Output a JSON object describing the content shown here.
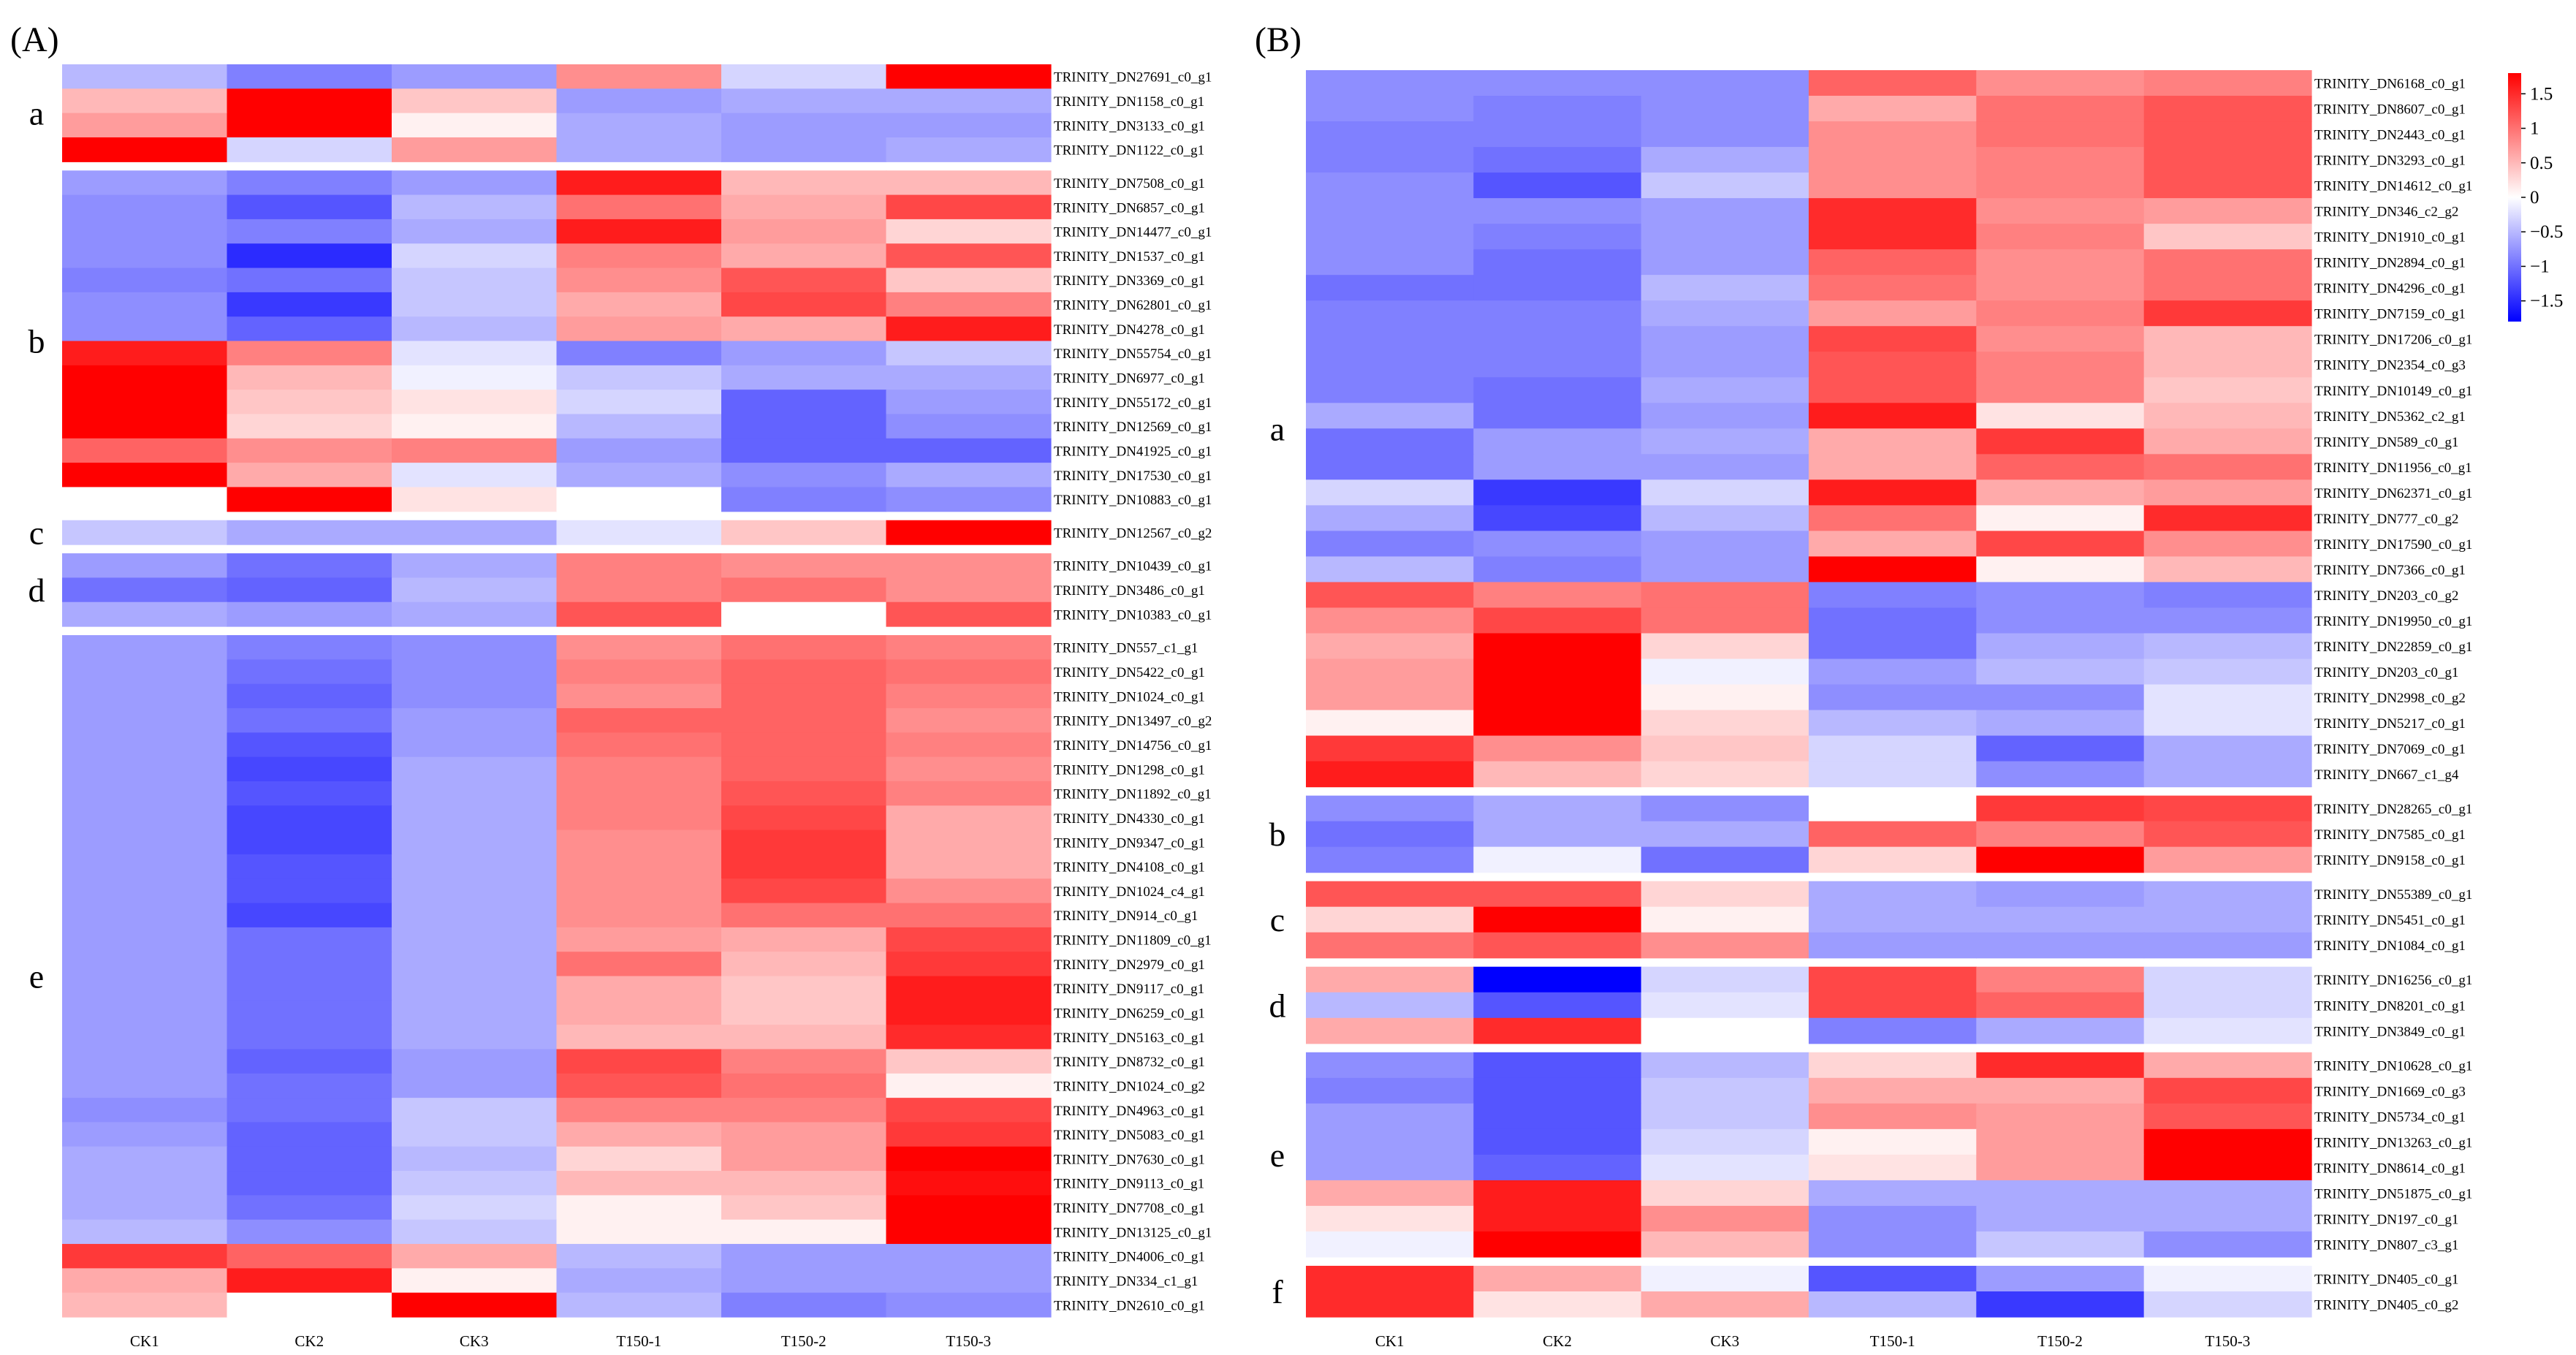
{
  "figure": {
    "samples": [
      "CK1",
      "CK2",
      "CK3",
      "T150-1",
      "T150-2",
      "T150-3"
    ],
    "palette": {
      "low": "#0000ff",
      "mid": "#ffffff",
      "high": "#ff0000"
    },
    "colorbar": {
      "min": -1.8,
      "max": 1.8,
      "ticks": [
        1.5,
        1,
        0.5,
        0,
        -0.5,
        -1,
        -1.5
      ],
      "tick_labels": [
        "1.5",
        "1",
        "0.5",
        "0",
        "−0.5",
        "−1",
        "−1.5"
      ]
    }
  },
  "chart_data": [
    {
      "type": "heatmap",
      "panel": "A",
      "panel_label": "(A)",
      "columns": [
        "CK1",
        "CK2",
        "CK3",
        "T150-1",
        "T150-2",
        "T150-3"
      ],
      "clusters": [
        {
          "name": "a",
          "genes": [
            "TRINITY_DN27691_c0_g1",
            "TRINITY_DN1158_c0_g1",
            "TRINITY_DN3133_c0_g1",
            "TRINITY_DN1122_c0_g1"
          ],
          "values": [
            [
              -0.5,
              -0.9,
              -0.7,
              0.8,
              -0.3,
              1.8
            ],
            [
              0.5,
              1.8,
              0.4,
              -0.7,
              -0.6,
              -0.6
            ],
            [
              0.7,
              1.8,
              0.1,
              -0.6,
              -0.7,
              -0.7
            ],
            [
              1.8,
              -0.3,
              0.7,
              -0.6,
              -0.7,
              -0.6
            ]
          ]
        },
        {
          "name": "b",
          "genes": [
            "TRINITY_DN7508_c0_g1",
            "TRINITY_DN6857_c0_g1",
            "TRINITY_DN14477_c0_g1",
            "TRINITY_DN1537_c0_g1",
            "TRINITY_DN3369_c0_g1",
            "TRINITY_DN62801_c0_g1",
            "TRINITY_DN4278_c0_g1",
            "TRINITY_DN55754_c0_g1",
            "TRINITY_DN6977_c0_g1",
            "TRINITY_DN55172_c0_g1",
            "TRINITY_DN12569_c0_g1",
            "TRINITY_DN41925_c0_g1",
            "TRINITY_DN17530_c0_g1",
            "TRINITY_DN10883_c0_g1"
          ],
          "values": [
            [
              -0.7,
              -0.9,
              -0.7,
              1.6,
              0.5,
              0.5
            ],
            [
              -0.8,
              -1.2,
              -0.5,
              1.0,
              0.6,
              1.3
            ],
            [
              -0.8,
              -0.9,
              -0.6,
              1.6,
              0.7,
              0.3
            ],
            [
              -0.8,
              -1.5,
              -0.3,
              0.9,
              0.6,
              1.2
            ],
            [
              -0.9,
              -1.0,
              -0.4,
              0.8,
              1.2,
              0.4
            ],
            [
              -0.8,
              -1.4,
              -0.4,
              0.6,
              1.3,
              0.9
            ],
            [
              -0.8,
              -1.1,
              -0.5,
              0.7,
              0.6,
              1.6
            ],
            [
              1.6,
              0.9,
              -0.2,
              -0.9,
              -0.7,
              -0.4
            ],
            [
              1.8,
              0.5,
              -0.1,
              -0.4,
              -0.6,
              -0.6
            ],
            [
              1.8,
              0.4,
              0.2,
              -0.3,
              -1.1,
              -0.7
            ],
            [
              1.8,
              0.3,
              0.1,
              -0.5,
              -1.1,
              -0.8
            ],
            [
              1.1,
              0.8,
              0.9,
              -0.7,
              -1.1,
              -1.1
            ],
            [
              1.8,
              0.6,
              -0.2,
              -0.6,
              -0.8,
              -0.6
            ],
            [
              0.0,
              1.8,
              0.2,
              0.0,
              -0.9,
              -0.8
            ]
          ]
        },
        {
          "name": "c",
          "genes": [
            "TRINITY_DN12567_c0_g2"
          ],
          "values": [
            [
              -0.4,
              -0.6,
              -0.6,
              -0.2,
              0.4,
              1.8
            ]
          ]
        },
        {
          "name": "d",
          "genes": [
            "TRINITY_DN10439_c0_g1",
            "TRINITY_DN3486_c0_g1",
            "TRINITY_DN10383_c0_g1"
          ],
          "values": [
            [
              -0.7,
              -1.0,
              -0.6,
              0.9,
              0.8,
              0.8
            ],
            [
              -1.0,
              -1.1,
              -0.5,
              0.9,
              1.0,
              0.8
            ],
            [
              -0.6,
              -0.7,
              -0.6,
              1.2,
              0.0,
              1.2
            ]
          ]
        },
        {
          "name": "e",
          "genes": [
            "TRINITY_DN557_c1_g1",
            "TRINITY_DN5422_c0_g1",
            "TRINITY_DN1024_c0_g1",
            "TRINITY_DN13497_c0_g2",
            "TRINITY_DN14756_c0_g1",
            "TRINITY_DN1298_c0_g1",
            "TRINITY_DN11892_c0_g1",
            "TRINITY_DN4330_c0_g1",
            "TRINITY_DN9347_c0_g1",
            "TRINITY_DN4108_c0_g1",
            "TRINITY_DN1024_c4_g1",
            "TRINITY_DN914_c0_g1",
            "TRINITY_DN11809_c0_g1",
            "TRINITY_DN2979_c0_g1",
            "TRINITY_DN9117_c0_g1",
            "TRINITY_DN6259_c0_g1",
            "TRINITY_DN5163_c0_g1",
            "TRINITY_DN8732_c0_g1",
            "TRINITY_DN1024_c0_g2",
            "TRINITY_DN4963_c0_g1",
            "TRINITY_DN5083_c0_g1",
            "TRINITY_DN7630_c0_g1",
            "TRINITY_DN9113_c0_g1",
            "TRINITY_DN7708_c0_g1",
            "TRINITY_DN13125_c0_g1",
            "TRINITY_DN4006_c0_g1",
            "TRINITY_DN334_c1_g1",
            "TRINITY_DN2610_c0_g1"
          ],
          "values": [
            [
              -0.7,
              -0.9,
              -0.8,
              0.8,
              1.0,
              0.9
            ],
            [
              -0.7,
              -1.0,
              -0.8,
              0.9,
              1.1,
              1.0
            ],
            [
              -0.7,
              -1.1,
              -0.8,
              0.8,
              1.1,
              0.9
            ],
            [
              -0.7,
              -1.0,
              -0.7,
              1.1,
              1.1,
              0.8
            ],
            [
              -0.7,
              -1.2,
              -0.7,
              1.0,
              1.1,
              0.9
            ],
            [
              -0.7,
              -1.3,
              -0.6,
              0.9,
              1.1,
              0.8
            ],
            [
              -0.7,
              -1.2,
              -0.6,
              0.9,
              1.2,
              0.9
            ],
            [
              -0.7,
              -1.3,
              -0.6,
              0.9,
              1.3,
              0.6
            ],
            [
              -0.7,
              -1.3,
              -0.6,
              0.8,
              1.4,
              0.6
            ],
            [
              -0.7,
              -1.2,
              -0.6,
              0.8,
              1.4,
              0.6
            ],
            [
              -0.7,
              -1.2,
              -0.6,
              0.8,
              1.3,
              0.8
            ],
            [
              -0.7,
              -1.3,
              -0.6,
              0.8,
              1.0,
              1.0
            ],
            [
              -0.7,
              -1.0,
              -0.6,
              0.7,
              0.6,
              1.3
            ],
            [
              -0.7,
              -1.0,
              -0.6,
              1.0,
              0.5,
              1.4
            ],
            [
              -0.7,
              -1.0,
              -0.6,
              0.6,
              0.4,
              1.6
            ],
            [
              -0.7,
              -1.0,
              -0.6,
              0.6,
              0.4,
              1.6
            ],
            [
              -0.7,
              -1.0,
              -0.6,
              0.5,
              0.5,
              1.5
            ],
            [
              -0.7,
              -1.1,
              -0.7,
              1.3,
              0.9,
              0.4
            ],
            [
              -0.7,
              -1.0,
              -0.7,
              1.2,
              1.0,
              0.1
            ],
            [
              -0.8,
              -1.0,
              -0.4,
              0.9,
              0.9,
              1.3
            ],
            [
              -0.7,
              -1.1,
              -0.4,
              0.6,
              0.7,
              1.4
            ],
            [
              -0.6,
              -1.1,
              -0.5,
              0.3,
              0.7,
              1.8
            ],
            [
              -0.6,
              -1.1,
              -0.4,
              0.5,
              0.5,
              1.7
            ],
            [
              -0.6,
              -1.0,
              -0.3,
              0.1,
              0.4,
              1.8
            ],
            [
              -0.5,
              -0.8,
              -0.4,
              0.1,
              0.1,
              1.8
            ],
            [
              1.4,
              1.1,
              0.6,
              -0.5,
              -0.7,
              -0.7
            ],
            [
              0.6,
              1.6,
              0.1,
              -0.6,
              -0.7,
              -0.7
            ],
            [
              0.5,
              0.0,
              1.8,
              -0.5,
              -0.9,
              -0.8
            ]
          ]
        }
      ]
    },
    {
      "type": "heatmap",
      "panel": "B",
      "panel_label": "(B)",
      "columns": [
        "CK1",
        "CK2",
        "CK3",
        "T150-1",
        "T150-2",
        "T150-3"
      ],
      "clusters": [
        {
          "name": "a",
          "genes": [
            "TRINITY_DN6168_c0_g1",
            "TRINITY_DN8607_c0_g1",
            "TRINITY_DN2443_c0_g1",
            "TRINITY_DN3293_c0_g1",
            "TRINITY_DN14612_c0_g1",
            "TRINITY_DN346_c2_g2",
            "TRINITY_DN1910_c0_g1",
            "TRINITY_DN2894_c0_g1",
            "TRINITY_DN4296_c0_g1",
            "TRINITY_DN7159_c0_g1",
            "TRINITY_DN17206_c0_g1",
            "TRINITY_DN2354_c0_g3",
            "TRINITY_DN10149_c0_g1",
            "TRINITY_DN5362_c2_g1",
            "TRINITY_DN589_c0_g1",
            "TRINITY_DN11956_c0_g1",
            "TRINITY_DN62371_c0_g1",
            "TRINITY_DN777_c0_g2",
            "TRINITY_DN17590_c0_g1",
            "TRINITY_DN7366_c0_g1",
            "TRINITY_DN203_c0_g2",
            "TRINITY_DN19950_c0_g1",
            "TRINITY_DN22859_c0_g1",
            "TRINITY_DN203_c0_g1",
            "TRINITY_DN2998_c0_g2",
            "TRINITY_DN5217_c0_g1",
            "TRINITY_DN7069_c0_g1",
            "TRINITY_DN667_c1_g4"
          ],
          "values": [
            [
              -0.8,
              -0.8,
              -0.8,
              1.1,
              0.8,
              0.9
            ],
            [
              -0.8,
              -0.9,
              -0.8,
              0.6,
              1.0,
              1.2
            ],
            [
              -0.9,
              -0.9,
              -0.8,
              0.8,
              1.0,
              1.2
            ],
            [
              -0.9,
              -1.0,
              -0.6,
              0.8,
              0.9,
              1.2
            ],
            [
              -0.8,
              -1.2,
              -0.4,
              0.8,
              0.9,
              1.2
            ],
            [
              -0.8,
              -0.8,
              -0.7,
              1.5,
              0.8,
              0.7
            ],
            [
              -0.8,
              -0.9,
              -0.7,
              1.5,
              0.9,
              0.4
            ],
            [
              -0.8,
              -1.0,
              -0.7,
              1.1,
              0.8,
              1.0
            ],
            [
              -1.0,
              -1.0,
              -0.5,
              1.0,
              0.8,
              1.0
            ],
            [
              -0.9,
              -0.9,
              -0.6,
              0.7,
              0.9,
              1.4
            ],
            [
              -0.9,
              -0.9,
              -0.7,
              1.3,
              0.8,
              0.5
            ],
            [
              -0.9,
              -0.9,
              -0.7,
              1.2,
              0.9,
              0.5
            ],
            [
              -0.9,
              -1.0,
              -0.6,
              1.2,
              0.9,
              0.4
            ],
            [
              -0.6,
              -1.0,
              -0.7,
              1.6,
              0.2,
              0.5
            ],
            [
              -1.0,
              -0.7,
              -0.6,
              0.6,
              1.4,
              0.6
            ],
            [
              -1.0,
              -0.7,
              -0.7,
              0.6,
              1.1,
              1.0
            ],
            [
              -0.3,
              -1.4,
              -0.3,
              1.6,
              0.6,
              0.7
            ],
            [
              -0.6,
              -1.3,
              -0.5,
              1.0,
              0.1,
              1.5
            ],
            [
              -0.9,
              -0.8,
              -0.7,
              0.6,
              1.3,
              0.8
            ],
            [
              -0.5,
              -0.9,
              -0.7,
              1.8,
              0.1,
              0.5
            ],
            [
              1.2,
              0.9,
              1.0,
              -0.9,
              -0.8,
              -0.9
            ],
            [
              0.8,
              1.3,
              1.0,
              -1.0,
              -0.8,
              -0.8
            ],
            [
              0.6,
              1.8,
              0.3,
              -1.0,
              -0.6,
              -0.5
            ],
            [
              0.7,
              1.8,
              -0.1,
              -0.7,
              -0.5,
              -0.4
            ],
            [
              0.7,
              1.8,
              0.1,
              -0.8,
              -0.8,
              -0.2
            ],
            [
              0.1,
              1.8,
              0.3,
              -0.5,
              -0.6,
              -0.2
            ],
            [
              1.4,
              0.8,
              0.4,
              -0.3,
              -1.1,
              -0.6
            ],
            [
              1.6,
              0.5,
              0.3,
              -0.3,
              -0.8,
              -0.6
            ]
          ]
        },
        {
          "name": "b",
          "genes": [
            "TRINITY_DN28265_c0_g1",
            "TRINITY_DN7585_c0_g1",
            "TRINITY_DN9158_c0_g1"
          ],
          "values": [
            [
              -0.8,
              -0.6,
              -0.8,
              0.0,
              1.4,
              1.3
            ],
            [
              -1.0,
              -0.6,
              -0.6,
              1.1,
              0.9,
              1.2
            ],
            [
              -0.9,
              -0.1,
              -1.0,
              0.3,
              1.8,
              0.7
            ]
          ]
        },
        {
          "name": "c",
          "genes": [
            "TRINITY_DN55389_c0_g1",
            "TRINITY_DN5451_c0_g1",
            "TRINITY_DN1084_c0_g1"
          ],
          "values": [
            [
              1.2,
              1.2,
              0.3,
              -0.6,
              -0.7,
              -0.6
            ],
            [
              0.3,
              1.8,
              0.1,
              -0.6,
              -0.6,
              -0.6
            ],
            [
              1.0,
              1.2,
              0.8,
              -0.7,
              -0.7,
              -0.7
            ]
          ]
        },
        {
          "name": "d",
          "genes": [
            "TRINITY_DN16256_c0_g1",
            "TRINITY_DN8201_c0_g1",
            "TRINITY_DN3849_c0_g1"
          ],
          "values": [
            [
              0.6,
              -1.8,
              -0.3,
              1.3,
              0.9,
              -0.3
            ],
            [
              -0.5,
              -1.2,
              -0.2,
              1.3,
              1.1,
              -0.3
            ],
            [
              0.6,
              1.5,
              0.0,
              -0.9,
              -0.6,
              -0.2
            ]
          ]
        },
        {
          "name": "e",
          "genes": [
            "TRINITY_DN10628_c0_g1",
            "TRINITY_DN1669_c0_g3",
            "TRINITY_DN5734_c0_g1",
            "TRINITY_DN13263_c0_g1",
            "TRINITY_DN8614_c0_g1",
            "TRINITY_DN51875_c0_g1",
            "TRINITY_DN197_c0_g1",
            "TRINITY_DN807_c3_g1"
          ],
          "values": [
            [
              -0.8,
              -1.2,
              -0.5,
              0.3,
              1.5,
              0.6
            ],
            [
              -0.9,
              -1.2,
              -0.4,
              0.6,
              0.6,
              1.3
            ],
            [
              -0.7,
              -1.2,
              -0.4,
              0.8,
              0.7,
              1.2
            ],
            [
              -0.7,
              -1.2,
              -0.3,
              0.1,
              0.7,
              1.8
            ],
            [
              -0.7,
              -1.1,
              -0.2,
              0.2,
              0.7,
              1.8
            ],
            [
              0.6,
              1.6,
              0.3,
              -0.6,
              -0.6,
              -0.6
            ],
            [
              0.2,
              1.6,
              0.8,
              -0.8,
              -0.6,
              -0.6
            ],
            [
              -0.1,
              1.8,
              0.5,
              -0.8,
              -0.4,
              -0.8
            ]
          ]
        },
        {
          "name": "f",
          "genes": [
            "TRINITY_DN405_c0_g1",
            "TRINITY_DN405_c0_g2"
          ],
          "values": [
            [
              1.5,
              0.6,
              -0.1,
              -1.2,
              -0.7,
              -0.1
            ],
            [
              1.5,
              0.2,
              0.6,
              -0.5,
              -1.4,
              -0.3
            ]
          ]
        }
      ]
    }
  ]
}
